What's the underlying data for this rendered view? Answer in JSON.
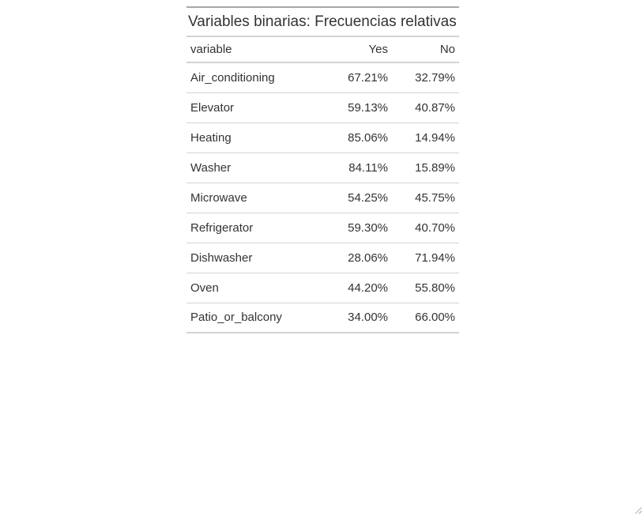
{
  "table": {
    "title": "Variables binarias: Frecuencias relativas",
    "headers": {
      "variable": "variable",
      "yes": "Yes",
      "no": "No"
    },
    "rows": [
      {
        "variable": "Air_conditioning",
        "yes": "67.21%",
        "no": "32.79%"
      },
      {
        "variable": "Elevator",
        "yes": "59.13%",
        "no": "40.87%"
      },
      {
        "variable": "Heating",
        "yes": "85.06%",
        "no": "14.94%"
      },
      {
        "variable": "Washer",
        "yes": "84.11%",
        "no": "15.89%"
      },
      {
        "variable": "Microwave",
        "yes": "54.25%",
        "no": "45.75%"
      },
      {
        "variable": "Refrigerator",
        "yes": "59.30%",
        "no": "40.70%"
      },
      {
        "variable": "Dishwasher",
        "yes": "28.06%",
        "no": "71.94%"
      },
      {
        "variable": "Oven",
        "yes": "44.20%",
        "no": "55.80%"
      },
      {
        "variable": "Patio_or_balcony",
        "yes": "34.00%",
        "no": "66.00%"
      }
    ]
  },
  "icons": {
    "resize": "resize-grip-icon"
  }
}
